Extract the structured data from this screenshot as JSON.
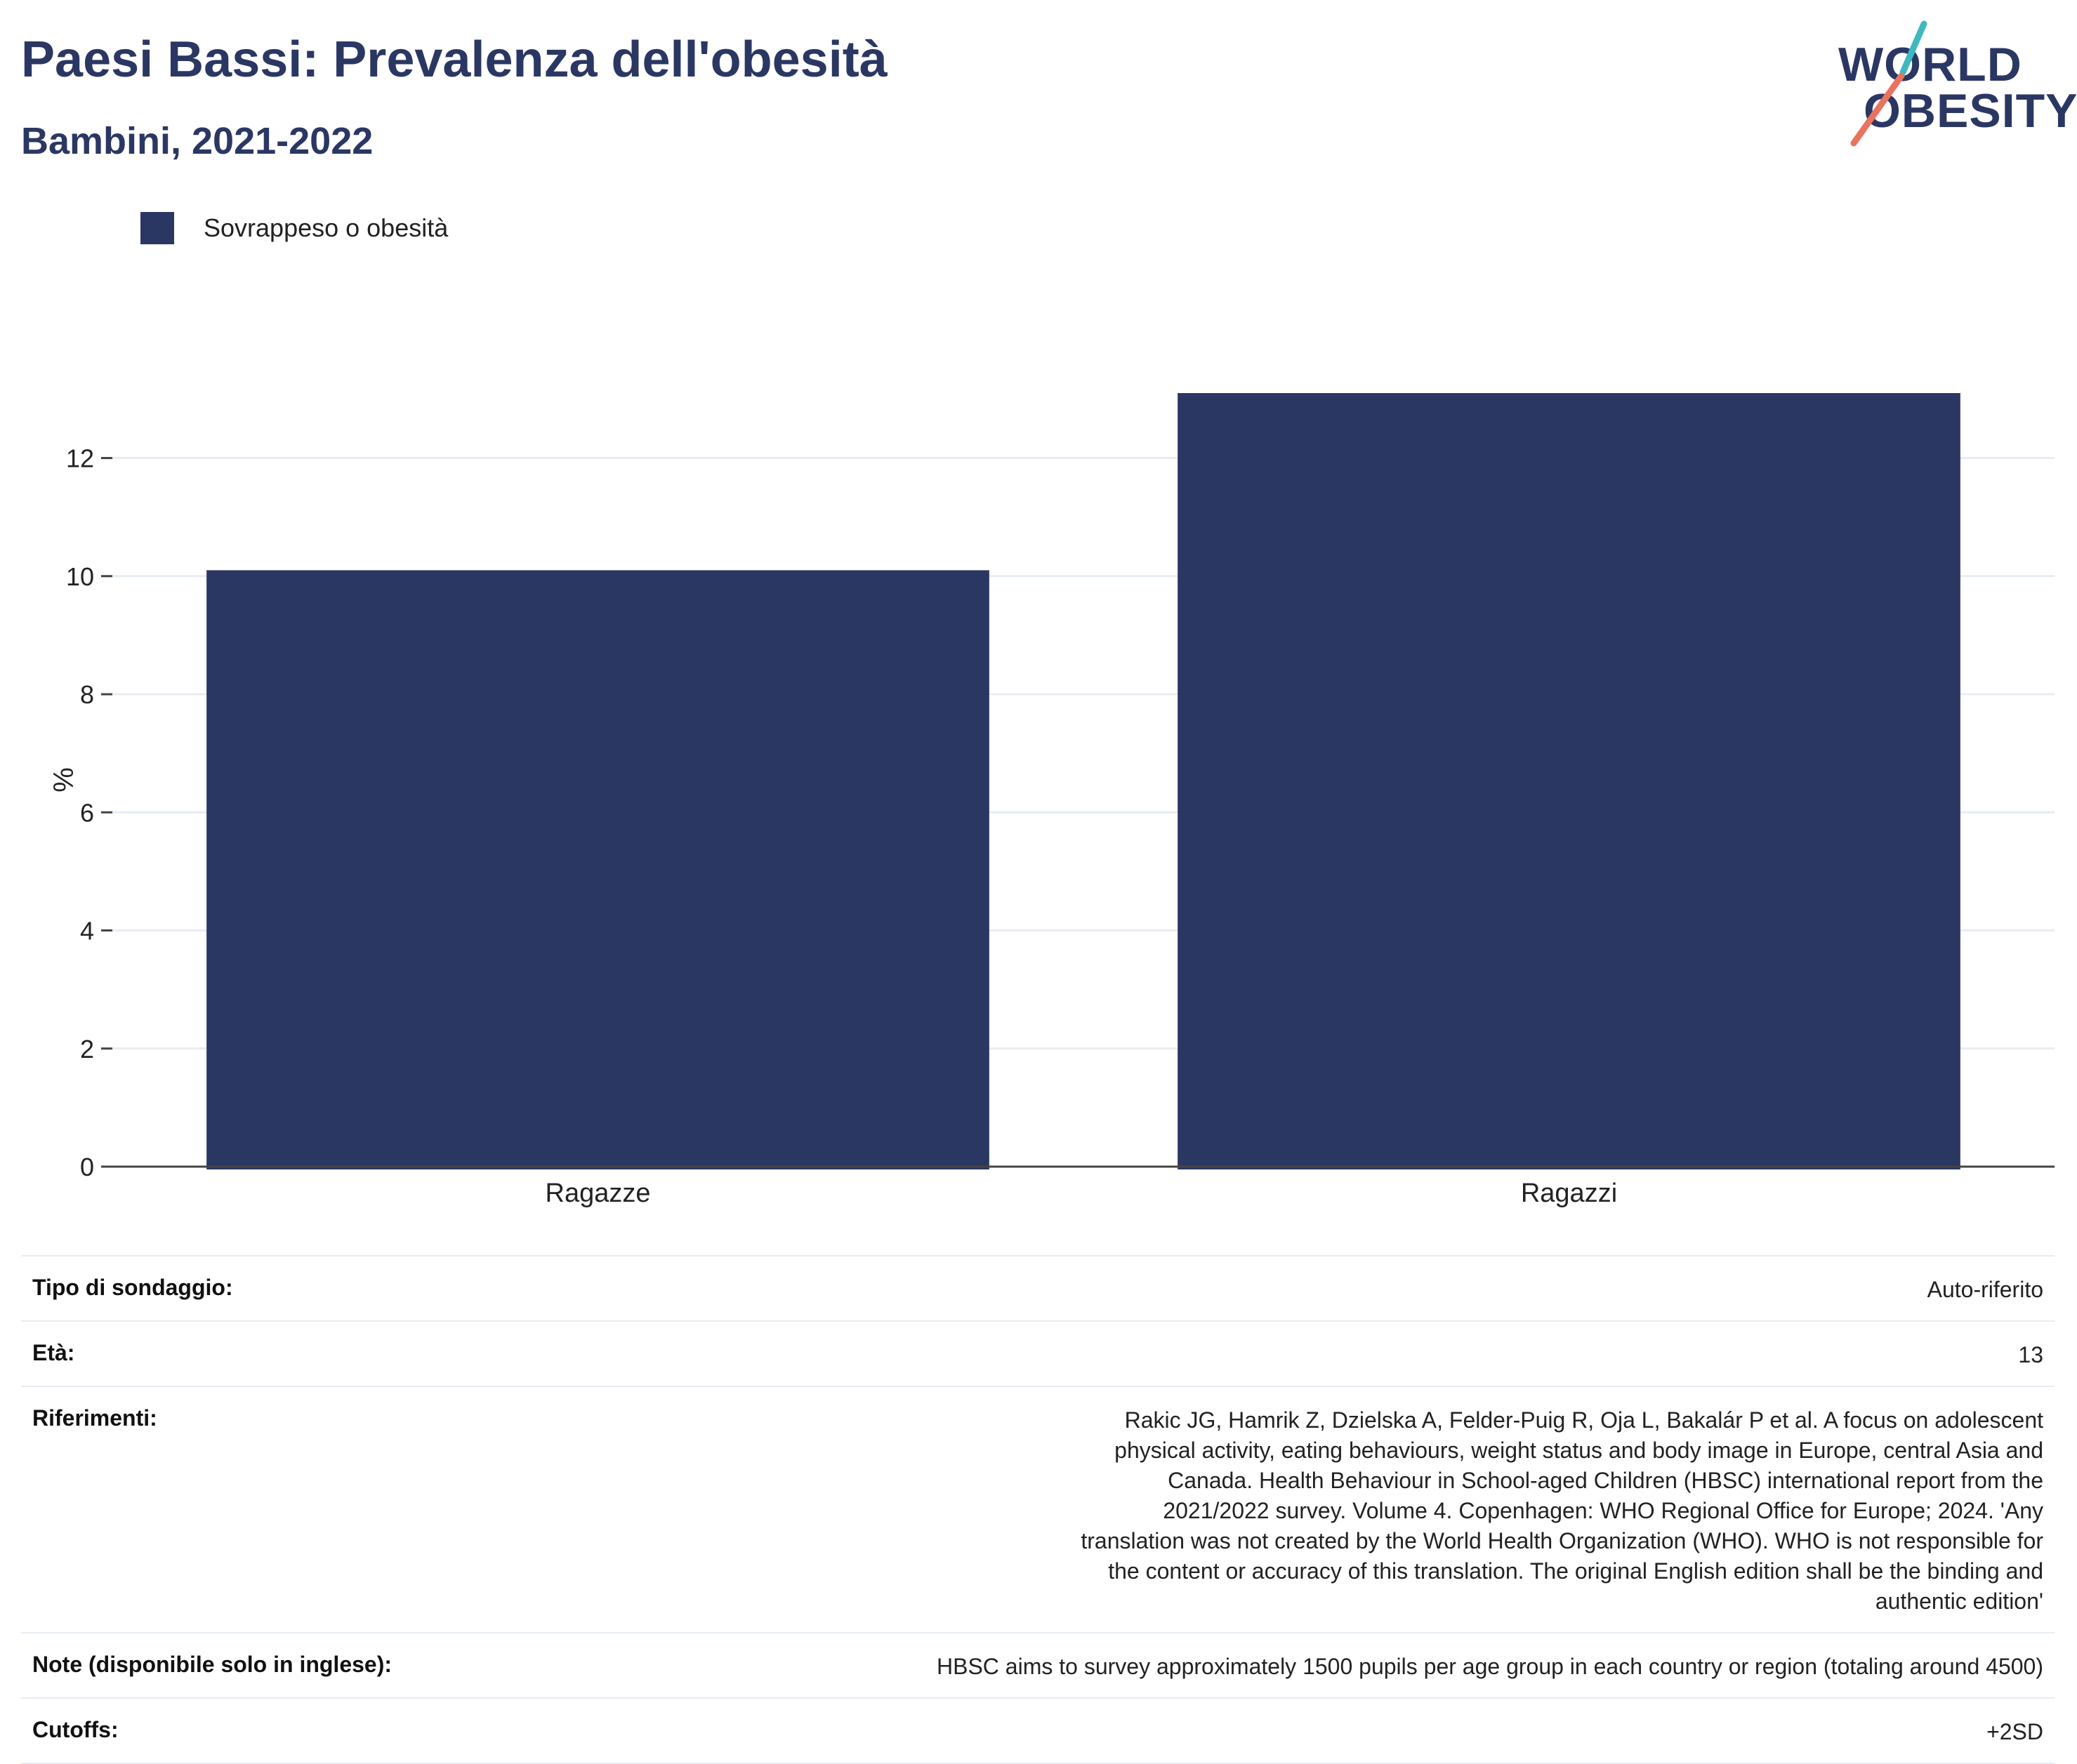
{
  "header": {
    "title": "Paesi Bassi: Prevalenza dell'obesità",
    "subtitle": "Bambini, 2021-2022"
  },
  "logo": {
    "line1": "WORLD",
    "line2": "OBESITY",
    "colors": {
      "text": "#2b3763",
      "slash_top": "#3fb8c0",
      "slash_bottom": "#e8735f"
    }
  },
  "legend": {
    "label": "Sovrappeso o obesità",
    "color": "#2b3763"
  },
  "chart_data": {
    "type": "bar",
    "categories": [
      "Ragazze",
      "Ragazzi"
    ],
    "series": [
      {
        "name": "Sovrappeso o obesità",
        "values": [
          10.1,
          13.1
        ],
        "color": "#2b3763"
      }
    ],
    "ylabel": "%",
    "xlabel": "",
    "ylim": [
      0,
      13.1
    ],
    "yticks": [
      0,
      2,
      4,
      6,
      8,
      10,
      12
    ],
    "grid": true,
    "legend_position": "top-left"
  },
  "info": [
    {
      "label": "Tipo di sondaggio:",
      "value": "Auto-riferito"
    },
    {
      "label": "Età:",
      "value": "13"
    },
    {
      "label": "Riferimenti:",
      "value": "Rakic JG, Hamrik Z, Dzielska A, Felder-Puig R, Oja L, Bakalár P et al. A focus on adolescent physical activity, eating behaviours, weight status and body image in Europe, central Asia and Canada. Health Behaviour in School-aged Children (HBSC) international report from the 2021/2022 survey. Volume 4. Copenhagen: WHO Regional Office for Europe; 2024. 'Any translation was not created by the World Health Organization (WHO). WHO is not responsible for the content or accuracy of this translation. The original English edition shall be the binding and authentic edition'"
    },
    {
      "label": "Note (disponibile solo in inglese):",
      "value": "HBSC aims to survey approximately 1500 pupils per age group in each country or region (totaling around 4500)"
    },
    {
      "label": "Cutoffs:",
      "value": "+2SD"
    }
  ]
}
